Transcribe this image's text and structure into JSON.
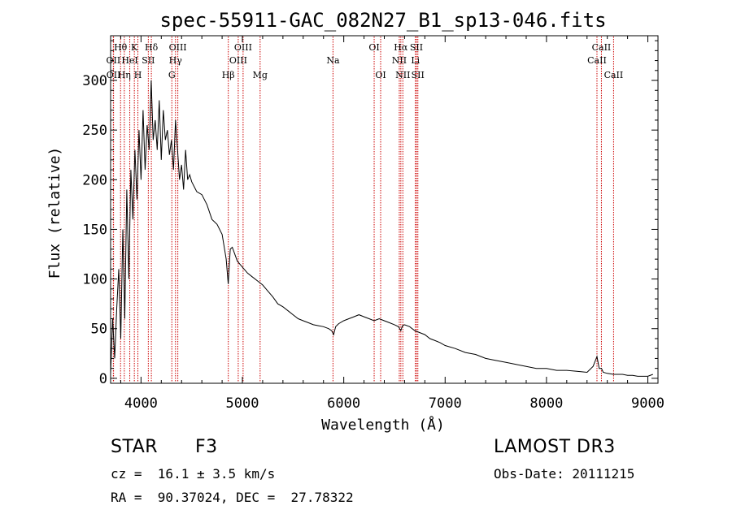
{
  "chart_data": {
    "type": "line",
    "title": "spec-55911-GAC_082N27_B1_sp13-046.fits",
    "xlabel": "Wavelength (Å)",
    "ylabel": "Flux (relative)",
    "xlim": [
      3700,
      9100
    ],
    "ylim": [
      -5,
      345
    ],
    "xticks": [
      4000,
      5000,
      6000,
      7000,
      8000,
      9000
    ],
    "yticks": [
      0,
      50,
      100,
      150,
      200,
      250,
      300
    ],
    "series": [
      {
        "name": "flux",
        "x": [
          3700,
          3720,
          3740,
          3760,
          3780,
          3800,
          3820,
          3840,
          3860,
          3880,
          3900,
          3920,
          3940,
          3960,
          3980,
          4000,
          4020,
          4040,
          4060,
          4080,
          4100,
          4120,
          4140,
          4160,
          4180,
          4200,
          4220,
          4240,
          4260,
          4280,
          4300,
          4320,
          4340,
          4360,
          4380,
          4400,
          4420,
          4440,
          4460,
          4480,
          4500,
          4550,
          4600,
          4650,
          4700,
          4750,
          4800,
          4840,
          4860,
          4880,
          4900,
          4950,
          5000,
          5050,
          5100,
          5150,
          5200,
          5250,
          5300,
          5350,
          5400,
          5450,
          5500,
          5550,
          5600,
          5650,
          5700,
          5750,
          5800,
          5850,
          5880,
          5900,
          5920,
          5950,
          6000,
          6050,
          6100,
          6150,
          6200,
          6250,
          6300,
          6350,
          6400,
          6450,
          6500,
          6540,
          6563,
          6580,
          6600,
          6650,
          6700,
          6750,
          6800,
          6850,
          6900,
          6950,
          7000,
          7100,
          7200,
          7300,
          7400,
          7500,
          7600,
          7700,
          7800,
          7900,
          8000,
          8100,
          8200,
          8300,
          8400,
          8460,
          8498,
          8520,
          8542,
          8560,
          8600,
          8662,
          8700,
          8750,
          8800,
          8850,
          8900,
          8950,
          9000,
          9050
        ],
        "values": [
          5,
          60,
          20,
          70,
          110,
          40,
          150,
          60,
          190,
          100,
          210,
          160,
          230,
          180,
          250,
          200,
          270,
          210,
          255,
          230,
          300,
          240,
          260,
          230,
          280,
          220,
          270,
          240,
          250,
          225,
          240,
          210,
          260,
          230,
          200,
          215,
          190,
          230,
          200,
          205,
          198,
          188,
          185,
          175,
          160,
          155,
          145,
          120,
          95,
          130,
          132,
          118,
          112,
          106,
          102,
          98,
          94,
          88,
          82,
          75,
          72,
          68,
          64,
          60,
          58,
          56,
          54,
          53,
          52,
          50,
          48,
          44,
          52,
          55,
          58,
          60,
          62,
          64,
          62,
          60,
          58,
          60,
          58,
          56,
          54,
          52,
          48,
          53,
          54,
          52,
          48,
          46,
          44,
          40,
          38,
          36,
          33,
          30,
          26,
          24,
          20,
          18,
          16,
          14,
          12,
          10,
          10,
          8,
          8,
          7,
          6,
          12,
          22,
          10,
          10,
          6,
          5,
          4,
          4,
          4,
          3,
          3,
          2,
          2,
          2,
          4
        ]
      }
    ],
    "lines": [
      {
        "name": "Hβ",
        "wave": 4861,
        "row": 3
      },
      {
        "name": "Hγ",
        "wave": 4340,
        "row": 2
      },
      {
        "name": "Hδ",
        "wave": 4102,
        "row": 1
      },
      {
        "name": "Hα",
        "wave": 6563,
        "row": 1
      },
      {
        "name": "Hθ",
        "wave": 3798,
        "row": 1
      },
      {
        "name": "Hη",
        "wave": 3835,
        "row": 3
      },
      {
        "name": "K",
        "wave": 3934,
        "row": 1
      },
      {
        "name": "H",
        "wave": 3969,
        "row": 3
      },
      {
        "name": "G",
        "wave": 4304,
        "row": 3
      },
      {
        "name": "Mg",
        "wave": 5175,
        "row": 3
      },
      {
        "name": "Na",
        "wave": 5894,
        "row": 2
      },
      {
        "name": "OIII",
        "wave": 4363,
        "row": 1
      },
      {
        "name": "OIII",
        "wave": 4959,
        "row": 2
      },
      {
        "name": "OIII",
        "wave": 5007,
        "row": 1
      },
      {
        "name": "OII",
        "wave": 3727,
        "row": 2
      },
      {
        "name": "OII",
        "wave": 3729,
        "row": 3
      },
      {
        "name": "HeI",
        "wave": 3889,
        "row": 2
      },
      {
        "name": "SII",
        "wave": 4072,
        "row": 2
      },
      {
        "name": "OI",
        "wave": 6300,
        "row": 1
      },
      {
        "name": "OI",
        "wave": 6364,
        "row": 3
      },
      {
        "name": "NII",
        "wave": 6548,
        "row": 2
      },
      {
        "name": "NII",
        "wave": 6583,
        "row": 3
      },
      {
        "name": "SII",
        "wave": 6717,
        "row": 1
      },
      {
        "name": "SII",
        "wave": 6731,
        "row": 3
      },
      {
        "name": "Li",
        "wave": 6707,
        "row": 2
      },
      {
        "name": "CaII",
        "wave": 8498,
        "row": 2
      },
      {
        "name": "CaII",
        "wave": 8542,
        "row": 1
      },
      {
        "name": "CaII",
        "wave": 8662,
        "row": 3
      }
    ]
  },
  "info": {
    "object_type": "STAR",
    "subclass": "F3",
    "survey": "LAMOST DR3",
    "redshift": "cz =  16.1 ± 3.5 km/s",
    "obs_date": "Obs-Date: 20111215",
    "coords": "RA =  90.37024, DEC =  27.78322"
  },
  "colors": {
    "spectrum": "#000000",
    "marker": "#cc0000"
  }
}
